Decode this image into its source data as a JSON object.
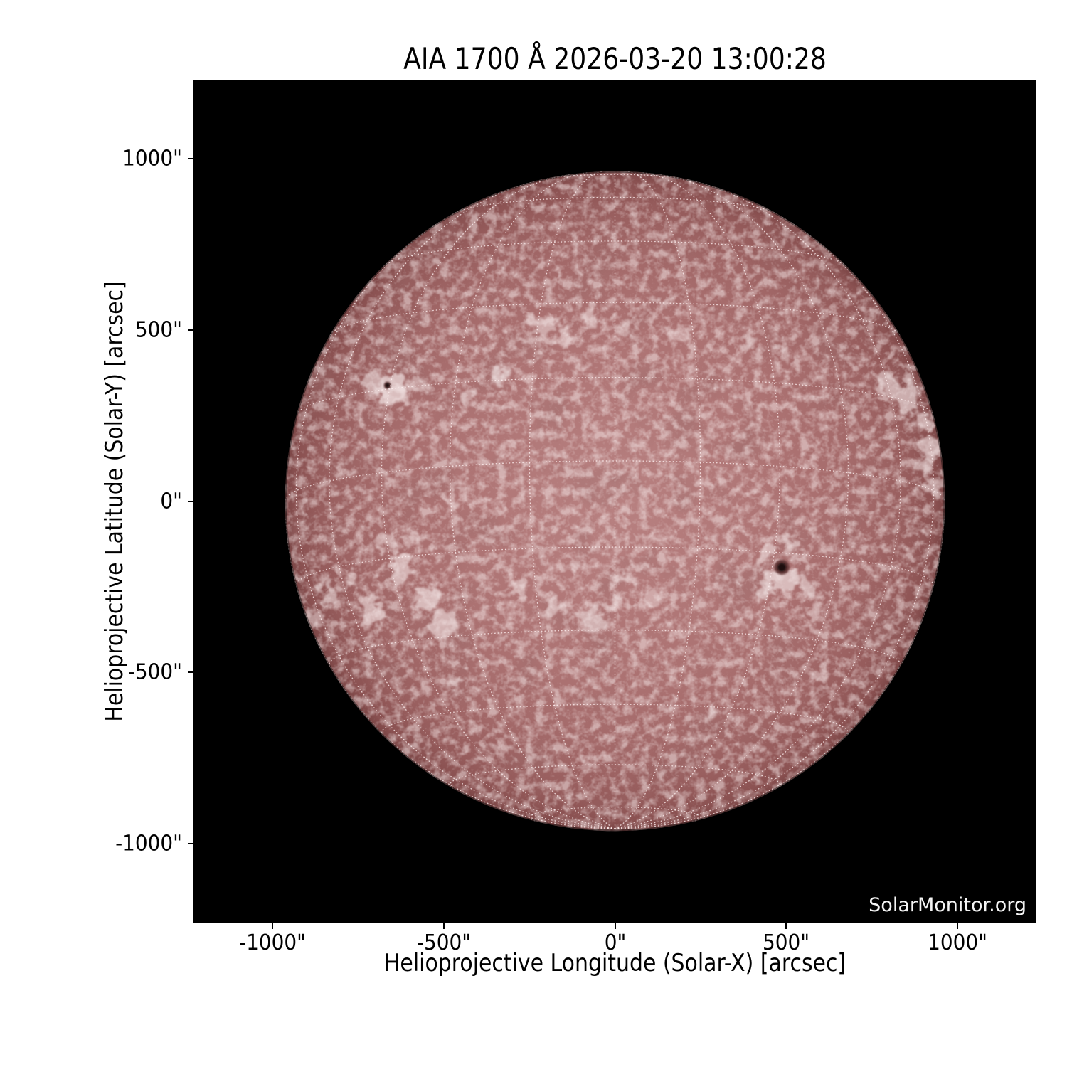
{
  "chart_data": {
    "type": "heatmap",
    "title": "AIA 1700 Å 2026-03-20 13:00:28",
    "xlabel": "Helioprojective Longitude (Solar-X) [arcsec]",
    "ylabel": "Helioprojective Latitude (Solar-Y) [arcsec]",
    "watermark": "SolarMonitor.org",
    "xlim": [
      -1230,
      1230
    ],
    "ylim": [
      -1230,
      1230
    ],
    "x_ticks": [
      {
        "value": -1000,
        "label": "-1000\""
      },
      {
        "value": -500,
        "label": "-500\""
      },
      {
        "value": 0,
        "label": "0\""
      },
      {
        "value": 500,
        "label": "500\""
      },
      {
        "value": 1000,
        "label": "1000\""
      }
    ],
    "y_ticks": [
      {
        "value": 1000,
        "label": "1000\""
      },
      {
        "value": 500,
        "label": "500\""
      },
      {
        "value": 0,
        "label": "0\""
      },
      {
        "value": -500,
        "label": "-500\""
      },
      {
        "value": -1000,
        "label": "-1000\""
      }
    ],
    "grid": {
      "visible": true,
      "style": "dotted",
      "spacing_deg": 15,
      "b0_deg": -7,
      "color": "#fff0f0"
    },
    "colors": {
      "page_bg": "#ffffff",
      "plot_bg": "#000000",
      "disk_center": "#b88181",
      "disk_edge": "#7a4545",
      "plage": "#f1e3e3",
      "network": "#f0d6d6",
      "mottle": "#542626",
      "sunspot_umbra": "#1f0c0c",
      "sunspot_penumbra": "#5c3030",
      "tick_color": "#000000",
      "watermark_color": "#f5f5f5"
    },
    "sun": {
      "center_arcsec": [
        0,
        0
      ],
      "radius_arcsec": 963,
      "sunspots": [
        {
          "x": 487,
          "y": -193,
          "core_r": 6,
          "outer_r": 10.5
        },
        {
          "x": -664,
          "y": 338,
          "core_r": 3.2,
          "outer_r": 5
        }
      ],
      "plage_regions": [
        {
          "x": -700,
          "y": 350,
          "r": 16,
          "o": 0.55
        },
        {
          "x": -655,
          "y": 332,
          "r": 20,
          "o": 0.7
        },
        {
          "x": -620,
          "y": 300,
          "r": 12,
          "o": 0.5
        },
        {
          "x": -585,
          "y": 345,
          "r": 10,
          "o": 0.45
        },
        {
          "x": -430,
          "y": 300,
          "r": 11,
          "o": 0.4
        },
        {
          "x": -340,
          "y": 360,
          "r": 13,
          "o": 0.42
        },
        {
          "x": -215,
          "y": 520,
          "r": 16,
          "o": 0.5
        },
        {
          "x": -150,
          "y": 480,
          "r": 11,
          "o": 0.45
        },
        {
          "x": -68,
          "y": 545,
          "r": 13,
          "o": 0.5
        },
        {
          "x": 30,
          "y": 500,
          "r": 10,
          "o": 0.4
        },
        {
          "x": 180,
          "y": 485,
          "r": 13,
          "o": 0.45
        },
        {
          "x": 388,
          "y": 465,
          "r": 11,
          "o": 0.4
        },
        {
          "x": 492,
          "y": 423,
          "r": 10,
          "o": 0.4
        },
        {
          "x": 803,
          "y": 340,
          "r": 14,
          "o": 0.55
        },
        {
          "x": 845,
          "y": 300,
          "r": 18,
          "o": 0.62
        },
        {
          "x": 895,
          "y": 225,
          "r": 14,
          "o": 0.6
        },
        {
          "x": 920,
          "y": 150,
          "r": 15,
          "o": 0.6
        },
        {
          "x": 905,
          "y": 112,
          "r": 12,
          "o": 0.55
        },
        {
          "x": 930,
          "y": 40,
          "r": 10,
          "o": 0.5
        },
        {
          "x": -463,
          "y": 8,
          "r": 12,
          "o": 0.45
        },
        {
          "x": -670,
          "y": -116,
          "r": 14,
          "o": 0.5
        },
        {
          "x": -629,
          "y": -199,
          "r": 18,
          "o": 0.6
        },
        {
          "x": -546,
          "y": -282,
          "r": 20,
          "o": 0.65
        },
        {
          "x": -712,
          "y": -324,
          "r": 16,
          "o": 0.6
        },
        {
          "x": -504,
          "y": -365,
          "r": 18,
          "o": 0.6
        },
        {
          "x": -836,
          "y": -282,
          "r": 14,
          "o": 0.55
        },
        {
          "x": -880,
          "y": -340,
          "r": 12,
          "o": 0.5
        },
        {
          "x": -760,
          "y": -220,
          "r": 12,
          "o": 0.5
        },
        {
          "x": -590,
          "y": -120,
          "r": 10,
          "o": 0.45
        },
        {
          "x": -276,
          "y": -261,
          "r": 14,
          "o": 0.5
        },
        {
          "x": -210,
          "y": -150,
          "r": 9,
          "o": 0.4
        },
        {
          "x": -172,
          "y": -303,
          "r": 12,
          "o": 0.5
        },
        {
          "x": -120,
          "y": -180,
          "r": 9,
          "o": 0.4
        },
        {
          "x": -68,
          "y": -344,
          "r": 14,
          "o": 0.55
        },
        {
          "x": -10,
          "y": -300,
          "r": 12,
          "o": 0.5
        },
        {
          "x": 35,
          "y": -220,
          "r": 10,
          "o": 0.45
        },
        {
          "x": 98,
          "y": -282,
          "r": 11,
          "o": 0.45
        },
        {
          "x": 284,
          "y": -116,
          "r": 9,
          "o": 0.4
        },
        {
          "x": 430,
          "y": -260,
          "r": 12,
          "o": 0.55
        },
        {
          "x": 450,
          "y": -158,
          "r": 14,
          "o": 0.6
        },
        {
          "x": 487,
          "y": -230,
          "r": 18,
          "o": 0.65
        },
        {
          "x": 520,
          "y": -130,
          "r": 10,
          "o": 0.5
        },
        {
          "x": 554,
          "y": -241,
          "r": 12,
          "o": 0.55
        },
        {
          "x": 595,
          "y": -324,
          "r": 11,
          "o": 0.5
        },
        {
          "x": 595,
          "y": -510,
          "r": 10,
          "o": 0.45
        },
        {
          "x": 284,
          "y": -614,
          "r": 10,
          "o": 0.4
        },
        {
          "x": 150,
          "y": -480,
          "r": 9,
          "o": 0.35
        },
        {
          "x": -338,
          "y": -718,
          "r": 10,
          "o": 0.4
        },
        {
          "x": -480,
          "y": -520,
          "r": 9,
          "o": 0.35
        },
        {
          "x": -89,
          "y": -780,
          "r": 9,
          "o": 0.35
        },
        {
          "x": -338,
          "y": 361,
          "r": 10,
          "o": 0.4
        },
        {
          "x": -442,
          "y": 299,
          "r": 10,
          "o": 0.4
        }
      ]
    }
  }
}
